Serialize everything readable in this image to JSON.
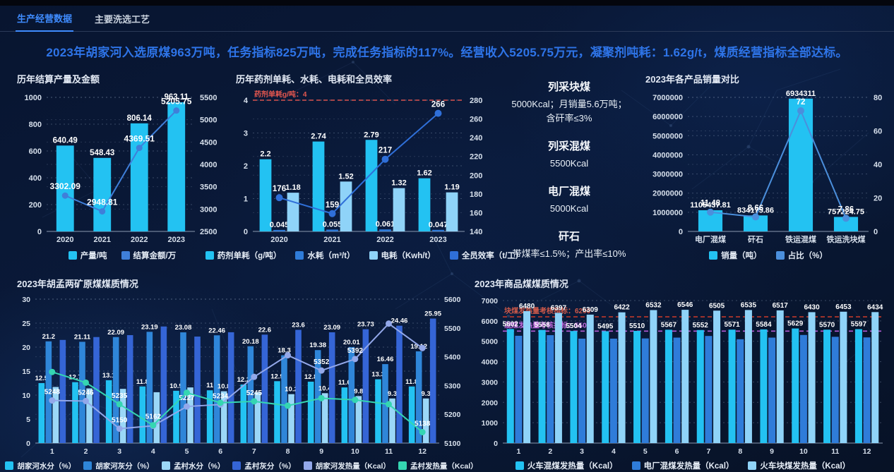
{
  "tabs": [
    {
      "label": "生产经营数据",
      "active": true
    },
    {
      "label": "主要洗选工艺",
      "active": false
    }
  ],
  "headline": "2023年胡家河入选原煤963万吨，任务指标825万吨，完成任务指标的117%。经营收入5205.75万元，凝聚剂吨耗：1.62g/t，煤质经营指标全部达标。",
  "colors": {
    "accent_blue": "#2e74e8",
    "tab_active": "#3f8cff",
    "cyan_bar": "#23c2f2",
    "medium_blue_bar": "#2f7cd9",
    "pale_blue_bar": "#8fd3f8",
    "royal_blue_bar": "#3565d6",
    "lavender_line": "#93a8ea",
    "teal_line": "#35d6b2",
    "markline_red": "#d9534f",
    "markline_purple": "#b45bd6"
  },
  "info_panel": {
    "items": [
      {
        "title": "列采块煤",
        "lines": [
          "5000Kcal；月销量5.6万吨；",
          "含矸率≤3%"
        ]
      },
      {
        "title": "列采混煤",
        "lines": [
          "5500Kcal"
        ]
      },
      {
        "title": "电厂混煤",
        "lines": [
          "5000Kcal"
        ]
      },
      {
        "title": "矸石",
        "lines": [
          "带煤率≤1.5%；产出率≤10%"
        ]
      }
    ]
  },
  "chart_data": [
    {
      "id": "annual-output",
      "type": "bar",
      "title": "历年结算产量及金额",
      "categories": [
        "2020",
        "2021",
        "2022",
        "2023"
      ],
      "axes": {
        "left": {
          "min": 0,
          "max": 1000,
          "step": 200
        },
        "right": {
          "min": 2500,
          "max": 5500,
          "step": 500
        }
      },
      "grid": true,
      "legend_position": "bottom",
      "series": [
        {
          "name": "产量/吨",
          "type": "bar",
          "axis": "left",
          "color": "#23c2f2",
          "values": [
            640.49,
            548.43,
            806.14,
            963.11
          ],
          "labels": true
        },
        {
          "name": "结算金额/万",
          "type": "line",
          "axis": "right",
          "color": "#3f7fd9",
          "values": [
            3302.09,
            2948.81,
            4369.51,
            5205.75
          ],
          "labels": true
        }
      ]
    },
    {
      "id": "annual-consumption",
      "type": "bar",
      "title": "历年药剂单耗、水耗、电耗和全员效率",
      "categories": [
        "2020",
        "2021",
        "2022",
        "2023"
      ],
      "axes": {
        "left": {
          "min": 0,
          "max": 4,
          "step": 1
        },
        "right": {
          "min": 140,
          "max": 280,
          "step": 20
        }
      },
      "grid": true,
      "legend_position": "bottom",
      "series": [
        {
          "name": "药剂单耗（g/吨）",
          "type": "bar",
          "axis": "left",
          "color": "#23c2f2",
          "values": [
            2.2,
            2.74,
            2.79,
            1.62
          ],
          "labels": true
        },
        {
          "name": "水耗（m³/t）",
          "type": "bar",
          "axis": "left",
          "color": "#2f7cd9",
          "values": [
            0.045,
            0.055,
            0.061,
            0.047
          ],
          "labels": true
        },
        {
          "name": "电耗（Kwh/t）",
          "type": "bar",
          "axis": "left",
          "color": "#8fd3f8",
          "values": [
            1.18,
            1.52,
            1.32,
            1.19
          ],
          "labels": true
        },
        {
          "name": "全员效率（t/工）",
          "type": "line",
          "axis": "right",
          "color": "#2f6fd8",
          "values": [
            176,
            159,
            217,
            266
          ],
          "labels": true
        }
      ],
      "marklines": [
        {
          "axis": "left",
          "value": 4,
          "color": "#d9534f",
          "label": "药剂单耗g/吨：4",
          "label_color": "#e4574f"
        }
      ]
    },
    {
      "id": "product-sales",
      "type": "bar",
      "title": "2023年各产品销量对比",
      "categories": [
        "电厂混煤",
        "矸石",
        "铁运混煤",
        "铁运洗块煤"
      ],
      "axes": {
        "left": {
          "min": 0,
          "max": 7000000,
          "step": 1000000
        },
        "right": {
          "min": 0,
          "max": 80,
          "step": 20
        }
      },
      "grid": true,
      "legend_position": "bottom",
      "series": [
        {
          "name": "销量（吨）",
          "type": "bar",
          "axis": "left",
          "color": "#23c2f2",
          "values": [
            1105437.81,
            834175.86,
            6934311,
            757224.75
          ],
          "labels": true
        },
        {
          "name": "占比（%）",
          "type": "line",
          "axis": "right",
          "color": "#4b8fdc",
          "values": [
            11.48,
            8.66,
            72,
            7.86
          ],
          "labels": true
        }
      ]
    },
    {
      "id": "raw-coal-quality",
      "type": "bar",
      "title": "2023年胡孟两矿原煤煤质情况",
      "categories": [
        "1",
        "2",
        "3",
        "4",
        "5",
        "6",
        "7",
        "8",
        "9",
        "10",
        "11",
        "12"
      ],
      "axes": {
        "left": {
          "min": 0,
          "max": 30,
          "step": 5
        },
        "right": {
          "min": 5100,
          "max": 5600,
          "step": 100
        }
      },
      "grid": true,
      "legend_position": "bottom",
      "series": [
        {
          "name": "胡家河水分（%）",
          "type": "bar",
          "axis": "left",
          "color": "#23c2f2",
          "values": [
            12.5,
            12.7,
            13.1,
            11.8,
            10.9,
            11,
            12.2,
            12.9,
            12.8,
            11.6,
            13.3,
            11.8
          ],
          "labels": true
        },
        {
          "name": "胡家河灰分（%）",
          "type": "bar",
          "axis": "left",
          "color": "#2f86d9",
          "values": [
            21.2,
            21.11,
            22.09,
            23.19,
            23.08,
            22.46,
            20.18,
            18.3,
            19.38,
            20.01,
            16.46,
            19.12
          ],
          "labels": true
        },
        {
          "name": "孟村水分（%）",
          "type": "bar",
          "axis": "left",
          "color": "#9bd7f7",
          "values": [
            11.7,
            11.4,
            11.3,
            10.6,
            11.6,
            10.8,
            10.6,
            10.2,
            10.4,
            9.8,
            9.3,
            9.3
          ],
          "labels": [
            null,
            null,
            null,
            null,
            null,
            "10.8",
            null,
            "10.2",
            "10.4",
            "9.8",
            "9.3",
            "9.3"
          ]
        },
        {
          "name": "孟村灰分（%）",
          "type": "bar",
          "axis": "left",
          "color": "#3565d6",
          "values": [
            21.5,
            22.1,
            22.5,
            24.3,
            22.2,
            23.1,
            22.6,
            23.6,
            23.09,
            23.73,
            24.46,
            25.95
          ],
          "labels": [
            null,
            null,
            null,
            null,
            null,
            null,
            "22.6",
            "23.6",
            "23.09",
            "23.73",
            "24.46",
            "25.95"
          ]
        },
        {
          "name": "胡家河发热量（Kcal）",
          "type": "line",
          "axis": "right",
          "color": "#93a8ea",
          "values": [
            5248,
            5246,
            5150,
            5160,
            5227,
            5234,
            5330,
            5405,
            5352,
            5392,
            5515,
            5430
          ],
          "labels": [
            "5248",
            "5246",
            "5150",
            null,
            "5227",
            "5234",
            null,
            null,
            "5352",
            "5392",
            null,
            null
          ]
        },
        {
          "name": "孟村发热量（Kcal）",
          "type": "line",
          "axis": "right",
          "color": "#35d6b2",
          "values": [
            5347,
            5310,
            5235,
            5162,
            5275,
            5240,
            5245,
            5230,
            5256,
            5250,
            5235,
            5138
          ],
          "labels": [
            null,
            null,
            "5235",
            "5162",
            null,
            null,
            "5245",
            null,
            null,
            null,
            null,
            "5138"
          ]
        }
      ]
    },
    {
      "id": "commodity-coal-quality",
      "type": "bar",
      "title": "2023年商品煤煤质情况",
      "categories": [
        "1",
        "2",
        "3",
        "4",
        "5",
        "6",
        "7",
        "8",
        "9",
        "10",
        "11",
        "12"
      ],
      "axes": {
        "left": {
          "min": 0,
          "max": 7000,
          "step": 1000
        }
      },
      "grid": true,
      "legend_position": "bottom",
      "series": [
        {
          "name": "火车混煤发热量（Kcal）",
          "type": "bar",
          "axis": "left",
          "color": "#23c2f2",
          "values": [
            5602,
            5558,
            5504,
            5495,
            5510,
            5567,
            5552,
            5571,
            5584,
            5629,
            5570,
            5597
          ],
          "labels": true
        },
        {
          "name": "电厂混煤发热量（Kcal）",
          "type": "bar",
          "axis": "left",
          "color": "#2f7cd9",
          "values": [
            5270,
            5300,
            5130,
            5130,
            5140,
            5180,
            5260,
            5100,
            5180,
            5310,
            5220,
            5190
          ],
          "labels": false
        },
        {
          "name": "火车块煤发热量（Kcal）",
          "type": "bar",
          "axis": "left",
          "color": "#8fd3f8",
          "values": [
            6480,
            6397,
            6309,
            6422,
            6532,
            6546,
            6505,
            6535,
            6517,
            6430,
            6453,
            6434
          ],
          "labels": true
        }
      ],
      "marklines": [
        {
          "axis": "left",
          "value": 6200,
          "color": "#c0392b",
          "label": "块煤发热量考核指标：6200",
          "label_color": "#d05a4a"
        },
        {
          "axis": "left",
          "value": 5500,
          "color": "#b45bd6",
          "label": "混煤发热量考核指标：5500",
          "label_color": "#c46be0"
        }
      ]
    }
  ]
}
